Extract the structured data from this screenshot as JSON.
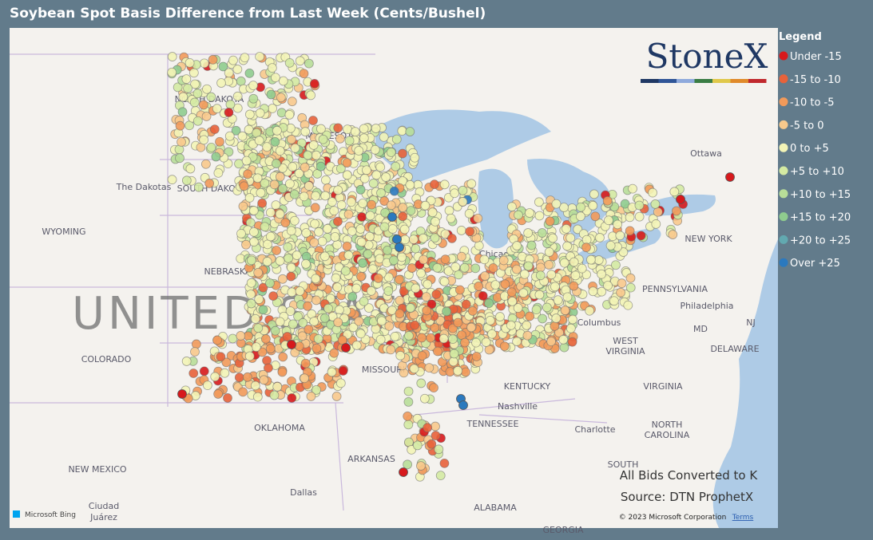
{
  "title": "Soybean Spot Basis Difference from Last Week (Cents/Bushel)",
  "logo": "StoneX",
  "legend": {
    "title": "Legend",
    "items": [
      {
        "label": "Under -15",
        "color": "#d7191c"
      },
      {
        "label": "-15 to -10",
        "color": "#e8623a"
      },
      {
        "label": "-10 to -5",
        "color": "#f29a5a"
      },
      {
        "label": "-5 to 0",
        "color": "#f8c98c"
      },
      {
        "label": "0 to +5",
        "color": "#f3f4b6"
      },
      {
        "label": "+5 to +10",
        "color": "#d4eaa2"
      },
      {
        "label": "+10 to +15",
        "color": "#b8de98"
      },
      {
        "label": "+15 to +20",
        "color": "#8fcc8e"
      },
      {
        "label": "+20 to +25",
        "color": "#62a9b0"
      },
      {
        "label": "Over +25",
        "color": "#2b79be"
      }
    ]
  },
  "map_labels": [
    "NORTH DAKOTA",
    "MINNESOTA",
    "The Dakotas",
    "SOUTH DAKOTA",
    "WYOMING",
    "NEBRASKA",
    "UNITED STATES",
    "COLORADO",
    "MISSOURI",
    "OKLAHOMA",
    "NEW MEXICO",
    "ARKANSAS",
    "Dallas",
    "Ciudad",
    "Juárez",
    "TENNESSEE",
    "Nashville",
    "KENTUCKY",
    "Charlotte",
    "NORTH",
    "CAROLINA",
    "VIRGINIA",
    "WEST",
    "VIRGINIA",
    "PENNSYLVANIA",
    "Philadelphia",
    "NEW YORK",
    "Ottawa",
    "Chicago",
    "Columbus",
    "MD",
    "DELAWARE",
    "NJ",
    "SOUTH",
    "ALABAMA",
    "GEORGIA"
  ],
  "notes": [
    "All Bids Converted to K",
    "Source: DTN ProphetX"
  ],
  "attribution": {
    "bing": "Microsoft Bing",
    "copyright": "© 2023 Microsoft Corporation",
    "terms": "Terms"
  }
}
